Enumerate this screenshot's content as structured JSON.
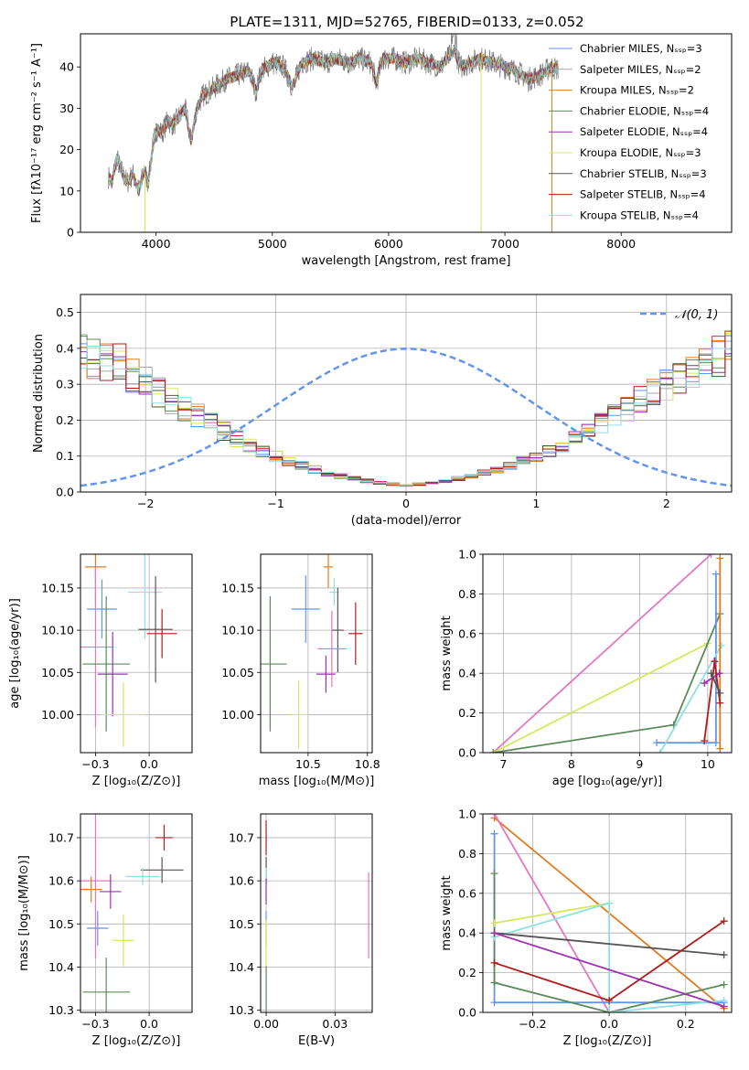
{
  "figure": {
    "title": "PLATE=1311, MJD=52765, FIBERID=0133, z=0.052"
  },
  "chart_data": [
    {
      "id": "spectrum",
      "type": "line",
      "xlabel": "wavelength [Angstrom, rest frame]",
      "ylabel": "Flux [fλ10⁻¹⁷ erg cm⁻² s⁻¹ A⁻¹]",
      "xlim": [
        3350,
        8950
      ],
      "ylim": [
        0,
        48
      ],
      "xticks": [
        4000,
        5000,
        6000,
        7000,
        8000
      ],
      "yticks": [
        0,
        10,
        20,
        30,
        40
      ],
      "legend_position": "top-right",
      "grid": false,
      "observed": {
        "x": [
          3580,
          3620,
          3660,
          3700,
          3750,
          3800,
          3850,
          3900,
          3930,
          3970,
          4000,
          4050,
          4100,
          4150,
          4200,
          4250,
          4300,
          4350,
          4400,
          4500,
          4600,
          4700,
          4800,
          4861,
          4900,
          5000,
          5100,
          5175,
          5250,
          5350,
          5450,
          5550,
          5650,
          5750,
          5850,
          5893,
          5950,
          6050,
          6150,
          6250,
          6350,
          6450,
          6563,
          6620,
          6700,
          6800,
          6900,
          7000,
          7100,
          7200,
          7300,
          7400,
          7500
        ],
        "y": [
          14,
          12,
          18,
          15,
          12,
          14,
          10,
          15,
          12,
          20,
          25,
          24,
          27,
          26,
          28,
          30,
          22,
          30,
          33,
          35,
          37,
          38,
          39,
          34,
          39,
          41,
          40,
          35,
          41,
          42,
          41,
          42,
          41,
          42,
          41,
          36,
          42,
          42,
          41,
          42,
          41,
          40,
          44,
          40,
          41,
          42,
          41,
          40,
          39,
          37,
          38,
          40,
          39
        ]
      },
      "series": [
        {
          "name": "Chabrier MILES, N_SSP=3",
          "color": "#6495ed"
        },
        {
          "name": "Salpeter MILES, N_SSP=2",
          "color": "#a6a6a6"
        },
        {
          "name": "Kroupa MILES, N_SSP=2",
          "color": "#e07b20"
        },
        {
          "name": "Chabrier ELODIE, N_SSP=4",
          "color": "#5b8a5b"
        },
        {
          "name": "Salpeter ELODIE, N_SSP=4",
          "color": "#9b30b0"
        },
        {
          "name": "Kroupa ELODIE, N_SSP=3",
          "color": "#d4e85c"
        },
        {
          "name": "Chabrier STELIB, N_SSP=3",
          "color": "#555555"
        },
        {
          "name": "Salpeter STELIB, N_SSP=4",
          "color": "#b01c1c"
        },
        {
          "name": "Kroupa STELIB, N_SSP=4",
          "color": "#8fe0e0"
        }
      ]
    },
    {
      "id": "residuals",
      "type": "histogram",
      "xlabel": "(data-model)/error",
      "ylabel": "Normed distribution",
      "xlim": [
        -2.5,
        2.5
      ],
      "ylim": [
        0,
        0.55
      ],
      "xticks": [
        -2,
        -1,
        0,
        1,
        2
      ],
      "yticks": [
        0.0,
        0.1,
        0.2,
        0.3,
        0.4,
        0.5
      ],
      "grid": true,
      "legend": "𝒩(0, 1)",
      "legend_position": "top-right",
      "bin_width": 0.1,
      "profile": [
        0.018,
        0.022,
        0.026,
        0.031,
        0.037,
        0.045,
        0.053,
        0.063,
        0.074,
        0.086,
        0.1,
        0.115,
        0.132,
        0.15,
        0.17,
        0.19,
        0.212,
        0.234,
        0.256,
        0.278,
        0.3,
        0.322,
        0.342,
        0.36,
        0.376,
        0.39,
        0.4,
        0.407,
        0.411,
        0.411,
        0.407,
        0.4,
        0.39,
        0.376,
        0.36,
        0.342,
        0.322,
        0.3,
        0.278,
        0.256,
        0.234,
        0.212,
        0.19,
        0.17,
        0.15,
        0.132,
        0.115,
        0.1,
        0.086,
        0.074,
        0.063
      ]
    },
    {
      "id": "age-vs-Z",
      "type": "errorbar",
      "xlabel": "Z [log₁₀(Z/Z⊙)]",
      "ylabel": "age  [log₁₀(age/yr)]",
      "xlim": [
        -0.32,
        0.2
      ],
      "ylim": [
        9.955,
        10.19
      ],
      "xticks": [
        -0.25,
        0.0
      ],
      "yticks": [
        10.0,
        10.05,
        10.1,
        10.15
      ],
      "grid": true,
      "points": [
        {
          "color": "#e07b20",
          "x": -0.25,
          "xerr": 0.05,
          "y": 10.175,
          "yerr": 0.045
        },
        {
          "color": "#6495ed",
          "x": -0.22,
          "xerr": 0.07,
          "y": 10.125,
          "yerr": 0.035
        },
        {
          "color": "#8fe0e0",
          "x": -0.02,
          "xerr": 0.08,
          "y": 10.145,
          "yerr": 0.055
        },
        {
          "color": "#555555",
          "x": 0.03,
          "xerr": 0.08,
          "y": 10.101,
          "yerr": 0.063
        },
        {
          "color": "#b01c1c",
          "x": 0.06,
          "xerr": 0.07,
          "y": 10.096,
          "yerr": 0.029
        },
        {
          "color": "#e377c2",
          "x": -0.25,
          "xerr": 0.08,
          "y": 10.08,
          "yerr": 0.095
        },
        {
          "color": "#5b8a5b",
          "x": -0.2,
          "xerr": 0.11,
          "y": 10.06,
          "yerr": 0.08
        },
        {
          "color": "#9b30b0",
          "x": -0.17,
          "xerr": 0.07,
          "y": 10.048,
          "yerr": 0.05
        },
        {
          "color": "#d4e85c",
          "x": -0.12,
          "xerr": 0.1,
          "y": 10.0,
          "yerr": 0.038
        }
      ]
    },
    {
      "id": "age-vs-mass",
      "type": "errorbar",
      "xlabel": "mass [log₁₀(M/M⊙)]",
      "ylabel": "",
      "xlim": [
        10.3,
        10.77
      ],
      "ylim": [
        9.955,
        10.19
      ],
      "xticks": [
        10.5,
        10.75
      ],
      "yticks": [
        10.0,
        10.05,
        10.1,
        10.15
      ],
      "grid": true,
      "points": [
        {
          "color": "#e07b20",
          "x": 10.585,
          "xerr": 0.02,
          "y": 10.175,
          "yerr": 0.025
        },
        {
          "color": "#8fe0e0",
          "x": 10.61,
          "xerr": 0.02,
          "y": 10.145,
          "yerr": 0.016
        },
        {
          "color": "#6495ed",
          "x": 10.49,
          "xerr": 0.06,
          "y": 10.125,
          "yerr": 0.04
        },
        {
          "color": "#555555",
          "x": 10.625,
          "xerr": 0.025,
          "y": 10.1,
          "yerr": 0.05
        },
        {
          "color": "#b01c1c",
          "x": 10.7,
          "xerr": 0.03,
          "y": 10.096,
          "yerr": 0.037
        },
        {
          "color": "#e377c2",
          "x": 10.6,
          "xerr": 0.06,
          "y": 10.078,
          "yerr": 0.045
        },
        {
          "color": "#5b8a5b",
          "x": 10.34,
          "xerr": 0.07,
          "y": 10.06,
          "yerr": 0.08
        },
        {
          "color": "#9b30b0",
          "x": 10.575,
          "xerr": 0.04,
          "y": 10.048,
          "yerr": 0.022
        },
        {
          "color": "#d4e85c",
          "x": 10.46,
          "xerr": 0.04,
          "y": 10.0,
          "yerr": 0.04
        }
      ]
    },
    {
      "id": "weight-vs-age",
      "type": "line",
      "xlabel": "age  [log₁₀(age/yr)]",
      "ylabel": "mass weight",
      "xlim": [
        6.7,
        10.35
      ],
      "ylim": [
        0,
        1.0
      ],
      "xticks": [
        7,
        8,
        9,
        10
      ],
      "yticks": [
        0.0,
        0.2,
        0.4,
        0.6,
        0.8,
        1.0
      ],
      "grid": true,
      "series": [
        {
          "color": "#e377c2",
          "points": [
            [
              6.85,
              0.0
            ],
            [
              10.05,
              1.0
            ]
          ]
        },
        {
          "color": "#d4e85c",
          "points": [
            [
              6.85,
              0.0
            ],
            [
              10.0,
              0.55
            ]
          ]
        },
        {
          "color": "#5b8a5b",
          "points": [
            [
              6.85,
              0.0
            ],
            [
              9.5,
              0.14
            ],
            [
              10.18,
              0.7
            ]
          ]
        },
        {
          "color": "#6495ed",
          "points": [
            [
              9.25,
              0.05
            ],
            [
              10.12,
              0.05
            ],
            [
              10.12,
              0.9
            ]
          ]
        },
        {
          "color": "#8fe0e0",
          "points": [
            [
              9.3,
              0.0
            ],
            [
              10.2,
              0.54
            ]
          ]
        },
        {
          "color": "#e07b20",
          "points": [
            [
              10.18,
              0.02
            ],
            [
              10.18,
              0.98
            ]
          ]
        },
        {
          "color": "#9b30b0",
          "points": [
            [
              9.95,
              0.35
            ],
            [
              10.17,
              0.4
            ]
          ]
        },
        {
          "color": "#b01c1c",
          "points": [
            [
              9.95,
              0.06
            ],
            [
              10.1,
              0.46
            ],
            [
              10.18,
              0.25
            ]
          ]
        },
        {
          "color": "#555555",
          "points": [
            [
              10.05,
              0.4
            ],
            [
              10.18,
              0.3
            ]
          ]
        }
      ]
    },
    {
      "id": "mass-vs-Z",
      "type": "errorbar",
      "xlabel": "Z [log₁₀(Z/Z⊙)]",
      "ylabel": "mass [log₁₀(M/M⊙)]",
      "xlim": [
        -0.32,
        0.2
      ],
      "ylim": [
        10.295,
        10.755
      ],
      "xticks": [
        -0.25,
        0.0
      ],
      "yticks": [
        10.3,
        10.4,
        10.5,
        10.6,
        10.7
      ],
      "grid": true,
      "points": [
        {
          "color": "#b01c1c",
          "x": 0.07,
          "xerr": 0.04,
          "y": 10.7,
          "yerr": 0.03
        },
        {
          "color": "#555555",
          "x": 0.06,
          "xerr": 0.1,
          "y": 10.625,
          "yerr": 0.03
        },
        {
          "color": "#8fe0e0",
          "x": -0.03,
          "xerr": 0.08,
          "y": 10.61,
          "yerr": 0.02
        },
        {
          "color": "#e377c2",
          "x": -0.25,
          "xerr": 0.07,
          "y": 10.6,
          "yerr": 0.18
        },
        {
          "color": "#e07b20",
          "x": -0.27,
          "xerr": 0.05,
          "y": 10.58,
          "yerr": 0.03
        },
        {
          "color": "#9b30b0",
          "x": -0.18,
          "xerr": 0.05,
          "y": 10.575,
          "yerr": 0.04
        },
        {
          "color": "#6495ed",
          "x": -0.24,
          "xerr": 0.05,
          "y": 10.49,
          "yerr": 0.04
        },
        {
          "color": "#d4e85c",
          "x": -0.12,
          "xerr": 0.05,
          "y": 10.462,
          "yerr": 0.06
        },
        {
          "color": "#5b8a5b",
          "x": -0.2,
          "xerr": 0.11,
          "y": 10.342,
          "yerr": 0.08
        }
      ]
    },
    {
      "id": "mass-vs-ebv",
      "type": "errorbar",
      "xlabel": "E(B-V)",
      "ylabel": "",
      "xlim": [
        -0.002,
        0.0385
      ],
      "ylim": [
        10.295,
        10.755
      ],
      "xticks": [
        0.0,
        0.025
      ],
      "yticks": [
        10.3,
        10.4,
        10.5,
        10.6,
        10.7
      ],
      "grid": true,
      "points": [
        {
          "color": "#b01c1c",
          "x": 0.0,
          "xerr": 0,
          "y": 10.7,
          "yerr": 0.04
        },
        {
          "color": "#555555",
          "x": 0.0,
          "xerr": 0,
          "y": 10.625,
          "yerr": 0.03
        },
        {
          "color": "#8fe0e0",
          "x": 0.0,
          "xerr": 0,
          "y": 10.61,
          "yerr": 0.02
        },
        {
          "color": "#9b30b0",
          "x": 0.0,
          "xerr": 0,
          "y": 10.575,
          "yerr": 0.03
        },
        {
          "color": "#e377c2",
          "x": 0.0372,
          "xerr": 0,
          "y": 10.52,
          "yerr": 0.1
        },
        {
          "color": "#6495ed",
          "x": 0.0,
          "xerr": 0,
          "y": 10.49,
          "yerr": 0.04
        },
        {
          "color": "#d4e85c",
          "x": 0.0,
          "xerr": 0,
          "y": 10.45,
          "yerr": 0.06
        },
        {
          "color": "#5b8a5b",
          "x": 0.0,
          "xerr": 0,
          "y": 10.342,
          "yerr": 0.06
        }
      ]
    },
    {
      "id": "weight-vs-Z",
      "type": "line",
      "xlabel": "Z [log₁₀(Z/Z⊙)]",
      "ylabel": "mass weight",
      "xlim": [
        -0.33,
        0.32
      ],
      "ylim": [
        0,
        1.0
      ],
      "xticks": [
        -0.2,
        0.0,
        0.2
      ],
      "yticks": [
        0.0,
        0.2,
        0.4,
        0.6,
        0.8,
        1.0
      ],
      "grid": true,
      "series": [
        {
          "color": "#e07b20",
          "points": [
            [
              -0.3,
              0.98
            ],
            [
              0.3,
              0.02
            ]
          ]
        },
        {
          "color": "#e377c2",
          "points": [
            [
              -0.3,
              1.0
            ],
            [
              0.0,
              0.0
            ]
          ]
        },
        {
          "color": "#6495ed",
          "points": [
            [
              -0.3,
              0.9
            ],
            [
              -0.3,
              0.05
            ],
            [
              0.3,
              0.05
            ]
          ]
        },
        {
          "color": "#5b8a5b",
          "points": [
            [
              -0.3,
              0.7
            ],
            [
              -0.3,
              0.15
            ],
            [
              0.0,
              0.0
            ],
            [
              0.3,
              0.14
            ]
          ]
        },
        {
          "color": "#d4e85c",
          "points": [
            [
              -0.3,
              0.45
            ],
            [
              0.0,
              0.55
            ]
          ]
        },
        {
          "color": "#8fe0e0",
          "points": [
            [
              -0.3,
              0.38
            ],
            [
              0.0,
              0.55
            ],
            [
              0.0,
              0.0
            ],
            [
              0.3,
              0.06
            ]
          ]
        },
        {
          "color": "#555555",
          "points": [
            [
              -0.3,
              0.4
            ],
            [
              0.3,
              0.29
            ]
          ]
        },
        {
          "color": "#9b30b0",
          "points": [
            [
              -0.3,
              0.4
            ],
            [
              0.3,
              0.03
            ]
          ]
        },
        {
          "color": "#b01c1c",
          "points": [
            [
              -0.3,
              0.25
            ],
            [
              0.0,
              0.06
            ],
            [
              0.3,
              0.46
            ]
          ]
        }
      ]
    }
  ]
}
